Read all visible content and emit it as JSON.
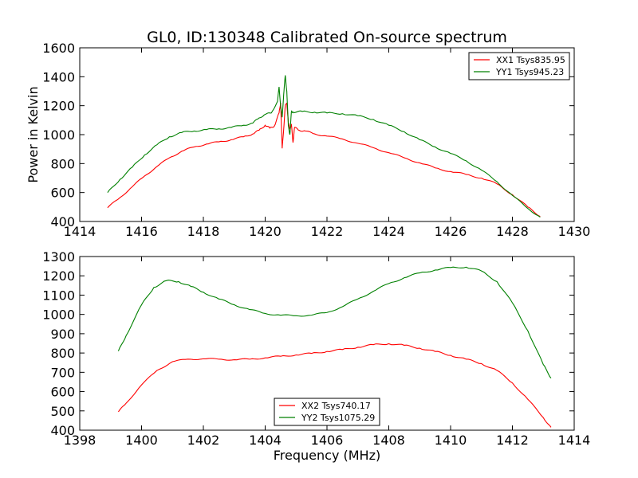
{
  "figure": {
    "title": "GL0, ID:130348 Calibrated On-source spectrum",
    "xlabel": "Frequency (MHz)",
    "ylabel": "Power in Kelvin"
  },
  "colors": {
    "red": "#ff0000",
    "green": "#008000"
  },
  "chart_data": [
    {
      "type": "line",
      "xlim": [
        1414,
        1430
      ],
      "ylim": [
        400,
        1600
      ],
      "xticks": [
        "1414",
        "1416",
        "1418",
        "1420",
        "1422",
        "1424",
        "1426",
        "1428",
        "1430"
      ],
      "yticks": [
        "400",
        "600",
        "800",
        "1000",
        "1200",
        "1400",
        "1600"
      ],
      "legend": "top-right",
      "grid": false,
      "series": [
        {
          "name": "XX1 Tsys835.95",
          "color": "#ff0000",
          "points": [
            [
              1414.9,
              495
            ],
            [
              1415.3,
              565
            ],
            [
              1415.7,
              640
            ],
            [
              1416.1,
              715
            ],
            [
              1416.5,
              780
            ],
            [
              1416.9,
              840
            ],
            [
              1417.3,
              885
            ],
            [
              1417.7,
              915
            ],
            [
              1418.1,
              935
            ],
            [
              1418.5,
              950
            ],
            [
              1418.9,
              965
            ],
            [
              1419.3,
              985
            ],
            [
              1419.6,
              1005
            ],
            [
              1419.8,
              1030
            ],
            [
              1420.0,
              1065
            ],
            [
              1420.15,
              1045
            ],
            [
              1420.3,
              1060
            ],
            [
              1420.45,
              1150
            ],
            [
              1420.5,
              1220
            ],
            [
              1420.55,
              905
            ],
            [
              1420.6,
              1040
            ],
            [
              1420.65,
              1200
            ],
            [
              1420.7,
              1220
            ],
            [
              1420.75,
              1080
            ],
            [
              1420.8,
              1040
            ],
            [
              1420.85,
              1070
            ],
            [
              1420.9,
              945
            ],
            [
              1420.95,
              1050
            ],
            [
              1421.1,
              1030
            ],
            [
              1421.3,
              1025
            ],
            [
              1421.6,
              1005
            ],
            [
              1422.0,
              990
            ],
            [
              1422.5,
              970
            ],
            [
              1423.0,
              940
            ],
            [
              1423.5,
              910
            ],
            [
              1424.0,
              875
            ],
            [
              1424.5,
              840
            ],
            [
              1425.0,
              805
            ],
            [
              1425.5,
              770
            ],
            [
              1426.0,
              745
            ],
            [
              1426.5,
              725
            ],
            [
              1427.0,
              700
            ],
            [
              1427.5,
              660
            ],
            [
              1428.0,
              585
            ],
            [
              1428.5,
              500
            ],
            [
              1428.9,
              435
            ]
          ]
        },
        {
          "name": "YY1 Tsys945.23",
          "color": "#008000",
          "points": [
            [
              1414.9,
              600
            ],
            [
              1415.3,
              690
            ],
            [
              1415.7,
              775
            ],
            [
              1416.1,
              860
            ],
            [
              1416.5,
              930
            ],
            [
              1416.9,
              985
            ],
            [
              1417.3,
              1015
            ],
            [
              1417.7,
              1025
            ],
            [
              1418.1,
              1035
            ],
            [
              1418.5,
              1040
            ],
            [
              1418.9,
              1050
            ],
            [
              1419.3,
              1065
            ],
            [
              1419.6,
              1080
            ],
            [
              1419.8,
              1115
            ],
            [
              1420.0,
              1140
            ],
            [
              1420.2,
              1150
            ],
            [
              1420.4,
              1230
            ],
            [
              1420.45,
              1330
            ],
            [
              1420.5,
              1200
            ],
            [
              1420.55,
              1120
            ],
            [
              1420.6,
              1280
            ],
            [
              1420.65,
              1410
            ],
            [
              1420.7,
              1300
            ],
            [
              1420.75,
              1060
            ],
            [
              1420.8,
              1000
            ],
            [
              1420.85,
              1160
            ],
            [
              1420.9,
              1155
            ],
            [
              1421.2,
              1160
            ],
            [
              1421.6,
              1155
            ],
            [
              1422.0,
              1150
            ],
            [
              1422.5,
              1145
            ],
            [
              1423.0,
              1130
            ],
            [
              1423.5,
              1105
            ],
            [
              1424.0,
              1065
            ],
            [
              1424.5,
              1020
            ],
            [
              1425.0,
              965
            ],
            [
              1425.5,
              915
            ],
            [
              1426.0,
              870
            ],
            [
              1426.5,
              820
            ],
            [
              1427.0,
              755
            ],
            [
              1427.5,
              675
            ],
            [
              1428.0,
              580
            ],
            [
              1428.5,
              490
            ],
            [
              1428.9,
              430
            ]
          ]
        }
      ]
    },
    {
      "type": "line",
      "xlim": [
        1398,
        1414
      ],
      "ylim": [
        400,
        1300
      ],
      "xticks": [
        "1398",
        "1400",
        "1402",
        "1404",
        "1406",
        "1408",
        "1410",
        "1412",
        "1414"
      ],
      "yticks": [
        "400",
        "500",
        "600",
        "700",
        "800",
        "900",
        "1000",
        "1100",
        "1200",
        "1300"
      ],
      "legend": "bottom-center",
      "grid": false,
      "series": [
        {
          "name": "XX2 Tsys740.17",
          "color": "#ff0000",
          "points": [
            [
              1399.25,
              495
            ],
            [
              1399.5,
              540
            ],
            [
              1400.0,
              635
            ],
            [
              1400.5,
              710
            ],
            [
              1401.0,
              755
            ],
            [
              1401.5,
              768
            ],
            [
              1402.0,
              770
            ],
            [
              1402.5,
              768
            ],
            [
              1403.0,
              765
            ],
            [
              1403.5,
              768
            ],
            [
              1404.0,
              775
            ],
            [
              1404.5,
              783
            ],
            [
              1405.0,
              790
            ],
            [
              1405.5,
              798
            ],
            [
              1406.0,
              808
            ],
            [
              1406.5,
              818
            ],
            [
              1407.0,
              830
            ],
            [
              1407.5,
              843
            ],
            [
              1408.0,
              848
            ],
            [
              1408.5,
              840
            ],
            [
              1409.0,
              825
            ],
            [
              1409.5,
              808
            ],
            [
              1410.0,
              788
            ],
            [
              1410.5,
              768
            ],
            [
              1411.0,
              745
            ],
            [
              1411.5,
              710
            ],
            [
              1412.0,
              645
            ],
            [
              1412.5,
              560
            ],
            [
              1413.0,
              465
            ],
            [
              1413.25,
              415
            ]
          ]
        },
        {
          "name": "YY2 Tsys1075.29",
          "color": "#008000",
          "points": [
            [
              1399.25,
              810
            ],
            [
              1399.5,
              890
            ],
            [
              1400.0,
              1050
            ],
            [
              1400.4,
              1140
            ],
            [
              1400.8,
              1175
            ],
            [
              1401.2,
              1170
            ],
            [
              1401.6,
              1145
            ],
            [
              1402.0,
              1115
            ],
            [
              1402.5,
              1080
            ],
            [
              1403.0,
              1050
            ],
            [
              1403.5,
              1025
            ],
            [
              1404.0,
              1005
            ],
            [
              1404.5,
              996
            ],
            [
              1405.0,
              993
            ],
            [
              1405.5,
              996
            ],
            [
              1406.0,
              1010
            ],
            [
              1406.5,
              1040
            ],
            [
              1407.0,
              1080
            ],
            [
              1407.5,
              1120
            ],
            [
              1408.0,
              1160
            ],
            [
              1408.5,
              1190
            ],
            [
              1409.0,
              1215
            ],
            [
              1409.5,
              1230
            ],
            [
              1410.0,
              1243
            ],
            [
              1410.5,
              1245
            ],
            [
              1411.0,
              1225
            ],
            [
              1411.5,
              1170
            ],
            [
              1412.0,
              1060
            ],
            [
              1412.5,
              915
            ],
            [
              1413.0,
              740
            ],
            [
              1413.25,
              670
            ]
          ]
        }
      ]
    }
  ]
}
